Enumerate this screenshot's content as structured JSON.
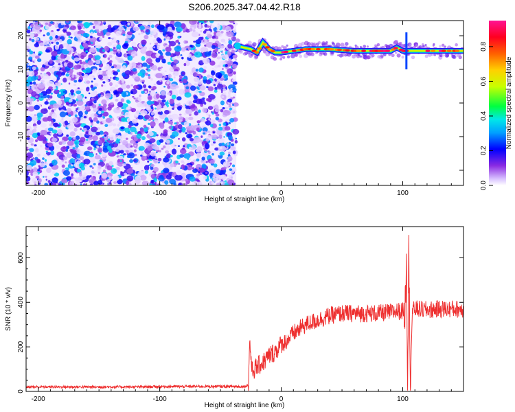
{
  "title": "S206.2025.347.04.42.R18",
  "chart_data": [
    {
      "type": "heatmap",
      "title": "S206.2025.347.04.42.R18",
      "xlabel": "Height of straight line (km)",
      "ylabel": "Frequency (Hz)",
      "xlim": [
        -210,
        150
      ],
      "ylim": [
        -24.5,
        24.5
      ],
      "xticks": [
        -200,
        -100,
        0,
        100
      ],
      "yticks": [
        -20,
        -10,
        0,
        10,
        20
      ],
      "grid": false,
      "colorbar": {
        "label": "Normalized spectral amplitude",
        "range": [
          0.0,
          0.95
        ],
        "ticks": [
          0.0,
          0.2,
          0.4,
          0.6,
          0.8
        ],
        "colormap": [
          "#ffffff",
          "#d2b4ff",
          "#8a2be2",
          "#0000ff",
          "#00c8ff",
          "#00ff00",
          "#ffff00",
          "#ff8c00",
          "#ff0000",
          "#ff1493"
        ]
      },
      "regions": [
        {
          "description": "broadband noise",
          "x": [
            -210,
            -37
          ],
          "freq": [
            -24.5,
            24.5
          ],
          "amplitude": [
            0.0,
            0.35
          ]
        },
        {
          "description": "narrow carrier trace",
          "x": [
            -37,
            150
          ],
          "freq_center": [
            17,
            16,
            15,
            18,
            16,
            15,
            15,
            16,
            16,
            15.5,
            15.5,
            16.5,
            15.5,
            15.5,
            15.5
          ],
          "x_points": [
            -37,
            -25,
            -20,
            -15,
            -10,
            -5,
            0,
            20,
            40,
            60,
            90,
            95,
            100,
            120,
            150
          ],
          "peak_amplitude": 0.95
        }
      ]
    },
    {
      "type": "line",
      "title": "",
      "xlabel": "Height of straight line (km)",
      "ylabel": "SNR (10 * v/v)",
      "xlim": [
        -210,
        150
      ],
      "ylim": [
        0,
        740
      ],
      "xticks": [
        -200,
        -100,
        0,
        100
      ],
      "yticks": [
        0,
        200,
        400,
        600
      ],
      "grid": false,
      "color": "#ee3030",
      "series": [
        {
          "x": [
            -210,
            -180,
            -150,
            -120,
            -90,
            -60,
            -40,
            -30,
            -27,
            -26,
            -24,
            -20,
            -15,
            -10,
            -5,
            0,
            5,
            10,
            15,
            20,
            30,
            40,
            50,
            60,
            70,
            80,
            90,
            95,
            100,
            102,
            103,
            104,
            105,
            106,
            108,
            110,
            120,
            130,
            140,
            150
          ],
          "y": [
            20,
            20,
            20,
            20,
            22,
            22,
            22,
            22,
            30,
            230,
            90,
            110,
            130,
            160,
            180,
            210,
            230,
            260,
            280,
            300,
            320,
            340,
            350,
            350,
            350,
            350,
            355,
            360,
            360,
            380,
            640,
            60,
            690,
            50,
            360,
            370,
            365,
            370,
            370,
            370
          ]
        }
      ]
    }
  ]
}
